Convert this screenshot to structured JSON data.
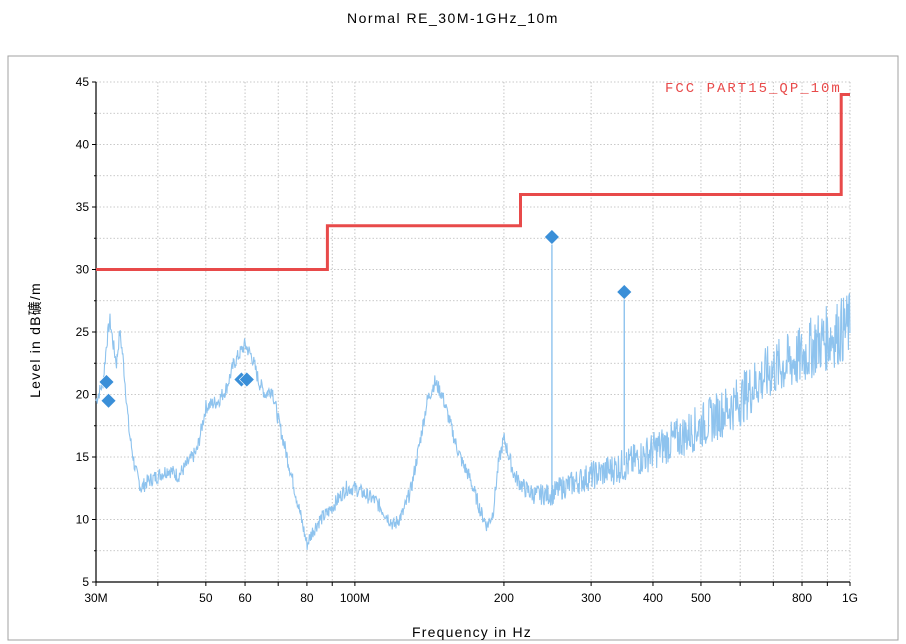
{
  "chart_data": {
    "type": "line",
    "title": "Normal RE_30M-1GHz_10m",
    "xlabel": "Frequency in Hz",
    "ylabel": "Level in dB礦/m",
    "xscale": "log",
    "xlim": [
      30000000,
      1000000000
    ],
    "ylim": [
      5,
      45
    ],
    "grid": true,
    "x_ticks": [
      {
        "value": 30000000,
        "label": "30M"
      },
      {
        "value": 50000000,
        "label": "50"
      },
      {
        "value": 60000000,
        "label": "60"
      },
      {
        "value": 80000000,
        "label": "80"
      },
      {
        "value": 100000000,
        "label": "100M"
      },
      {
        "value": 200000000,
        "label": "200"
      },
      {
        "value": 300000000,
        "label": "300"
      },
      {
        "value": 400000000,
        "label": "400"
      },
      {
        "value": 500000000,
        "label": "500"
      },
      {
        "value": 800000000,
        "label": "800"
      },
      {
        "value": 1000000000,
        "label": "1G"
      }
    ],
    "y_ticks": [
      {
        "value": 5,
        "label": "5"
      },
      {
        "value": 10,
        "label": "10"
      },
      {
        "value": 15,
        "label": "15"
      },
      {
        "value": 20,
        "label": "20"
      },
      {
        "value": 25,
        "label": "25"
      },
      {
        "value": 30,
        "label": "30"
      },
      {
        "value": 35,
        "label": "35"
      },
      {
        "value": 40,
        "label": "40"
      },
      {
        "value": 45,
        "label": "45"
      }
    ],
    "limit_line": {
      "name": "FCC PART15_QP_10m",
      "color": "#e84a4a",
      "points": [
        [
          30000000,
          30.0
        ],
        [
          88000000,
          30.0
        ],
        [
          88000000,
          33.5
        ],
        [
          216000000,
          33.5
        ],
        [
          216000000,
          36.0
        ],
        [
          960000000,
          36.0
        ],
        [
          960000000,
          44.0
        ],
        [
          1000000000,
          44.0
        ]
      ]
    },
    "trace": {
      "color": "#8ec3ee",
      "points": [
        [
          30000000,
          19.5
        ],
        [
          31000000,
          21.0
        ],
        [
          31500000,
          24.0
        ],
        [
          32000000,
          26.0
        ],
        [
          32500000,
          24.0
        ],
        [
          33000000,
          22.5
        ],
        [
          33500000,
          25.0
        ],
        [
          34000000,
          23.0
        ],
        [
          35000000,
          17.0
        ],
        [
          36000000,
          14.0
        ],
        [
          37000000,
          12.5
        ],
        [
          38000000,
          13.0
        ],
        [
          40000000,
          13.5
        ],
        [
          42000000,
          14.0
        ],
        [
          44000000,
          13.5
        ],
        [
          46000000,
          14.5
        ],
        [
          48000000,
          15.5
        ],
        [
          50000000,
          19.0
        ],
        [
          53000000,
          19.5
        ],
        [
          55000000,
          20.5
        ],
        [
          57000000,
          22.5
        ],
        [
          59000000,
          23.5
        ],
        [
          60000000,
          24.0
        ],
        [
          62000000,
          23.0
        ],
        [
          64000000,
          21.0
        ],
        [
          66000000,
          20.0
        ],
        [
          68000000,
          20.5
        ],
        [
          70000000,
          18.0
        ],
        [
          73000000,
          15.0
        ],
        [
          76000000,
          12.0
        ],
        [
          78000000,
          10.0
        ],
        [
          80000000,
          8.0
        ],
        [
          82000000,
          9.0
        ],
        [
          85000000,
          10.0
        ],
        [
          88000000,
          10.5
        ],
        [
          92000000,
          11.5
        ],
        [
          96000000,
          12.5
        ],
        [
          100000000,
          12.5
        ],
        [
          105000000,
          12.0
        ],
        [
          110000000,
          11.5
        ],
        [
          115000000,
          10.5
        ],
        [
          120000000,
          9.5
        ],
        [
          125000000,
          10.5
        ],
        [
          130000000,
          12.5
        ],
        [
          135000000,
          16.0
        ],
        [
          140000000,
          19.5
        ],
        [
          145000000,
          21.0
        ],
        [
          150000000,
          20.0
        ],
        [
          155000000,
          18.0
        ],
        [
          160000000,
          16.0
        ],
        [
          165000000,
          14.5
        ],
        [
          170000000,
          13.5
        ],
        [
          175000000,
          12.0
        ],
        [
          180000000,
          10.5
        ],
        [
          185000000,
          9.5
        ],
        [
          190000000,
          10.5
        ],
        [
          195000000,
          14.5
        ],
        [
          200000000,
          16.5
        ],
        [
          210000000,
          13.5
        ],
        [
          220000000,
          12.5
        ],
        [
          230000000,
          12.0
        ],
        [
          240000000,
          12.0
        ],
        [
          250000000,
          12.0
        ],
        [
          260000000,
          12.5
        ],
        [
          280000000,
          13.0
        ],
        [
          300000000,
          13.5
        ],
        [
          330000000,
          14.0
        ],
        [
          360000000,
          14.5
        ],
        [
          400000000,
          15.5
        ],
        [
          450000000,
          16.5
        ],
        [
          500000000,
          17.5
        ],
        [
          550000000,
          18.5
        ],
        [
          600000000,
          19.5
        ],
        [
          650000000,
          21.0
        ],
        [
          700000000,
          22.0
        ],
        [
          750000000,
          22.5
        ],
        [
          800000000,
          23.0
        ],
        [
          850000000,
          24.0
        ],
        [
          900000000,
          24.5
        ],
        [
          950000000,
          25.0
        ],
        [
          1000000000,
          25.5
        ]
      ],
      "spikes": [
        [
          250000000,
          32.6
        ],
        [
          350000000,
          28.2
        ]
      ]
    },
    "markers": {
      "color": "#3a8fd8",
      "points": [
        [
          31500000,
          21.0
        ],
        [
          31800000,
          19.5
        ],
        [
          59000000,
          21.2
        ],
        [
          60500000,
          21.2
        ],
        [
          250000000,
          32.6
        ],
        [
          350000000,
          28.2
        ]
      ]
    }
  }
}
